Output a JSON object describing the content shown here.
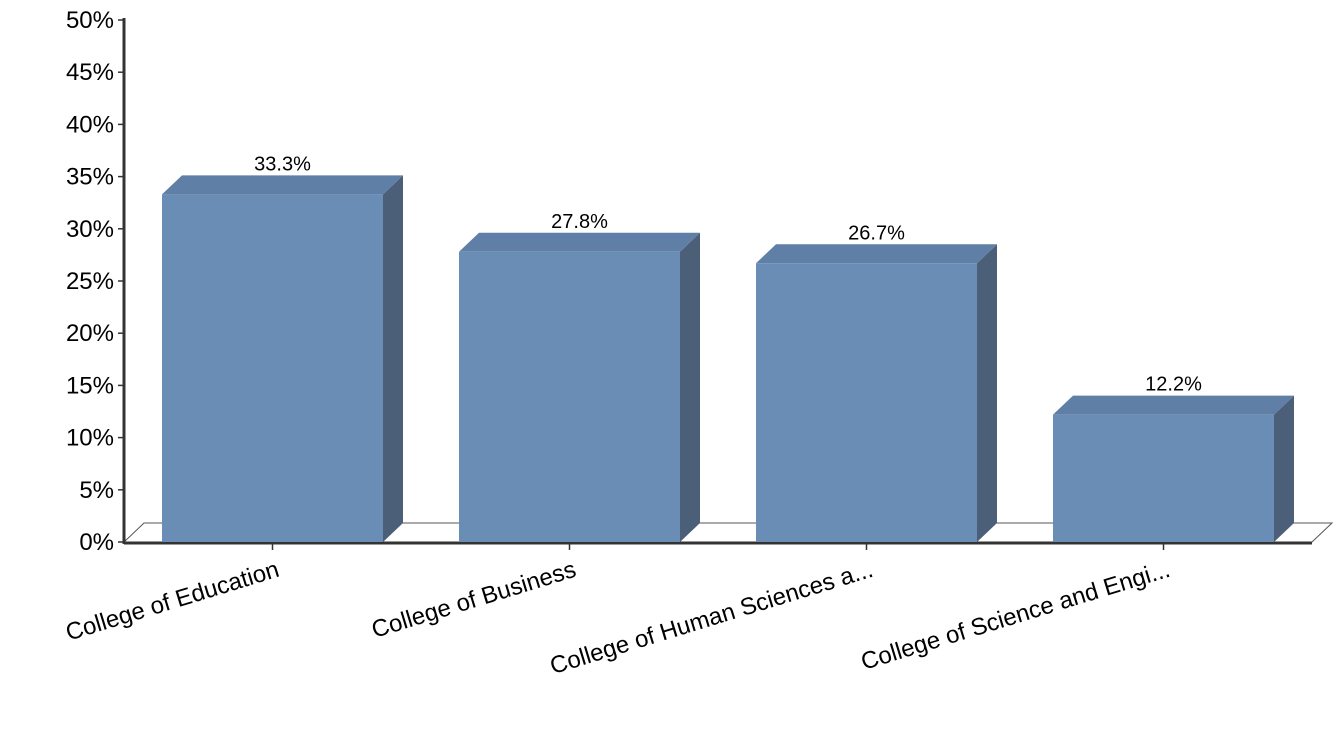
{
  "chart_data": {
    "type": "bar",
    "categories": [
      "College of Education",
      "College of Business",
      "College of Human Sciences a...",
      "College of Science and Engi..."
    ],
    "values": [
      33.3,
      27.8,
      26.7,
      12.2
    ],
    "value_labels": [
      "33.3%",
      "27.8%",
      "26.7%",
      "12.2%"
    ],
    "ylim": [
      0,
      50
    ],
    "yticks": [
      0,
      5,
      10,
      15,
      20,
      25,
      30,
      35,
      40,
      45,
      50
    ],
    "ytick_labels": [
      "0%",
      "5%",
      "10%",
      "15%",
      "20%",
      "25%",
      "30%",
      "35%",
      "40%",
      "45%",
      "50%"
    ],
    "style": "3d",
    "grid": false,
    "legend": "none",
    "colors": {
      "bar_front": "#6a8db5",
      "bar_top": "#5f7fa6",
      "bar_side": "#4b5f78",
      "axis": "#333333"
    }
  }
}
